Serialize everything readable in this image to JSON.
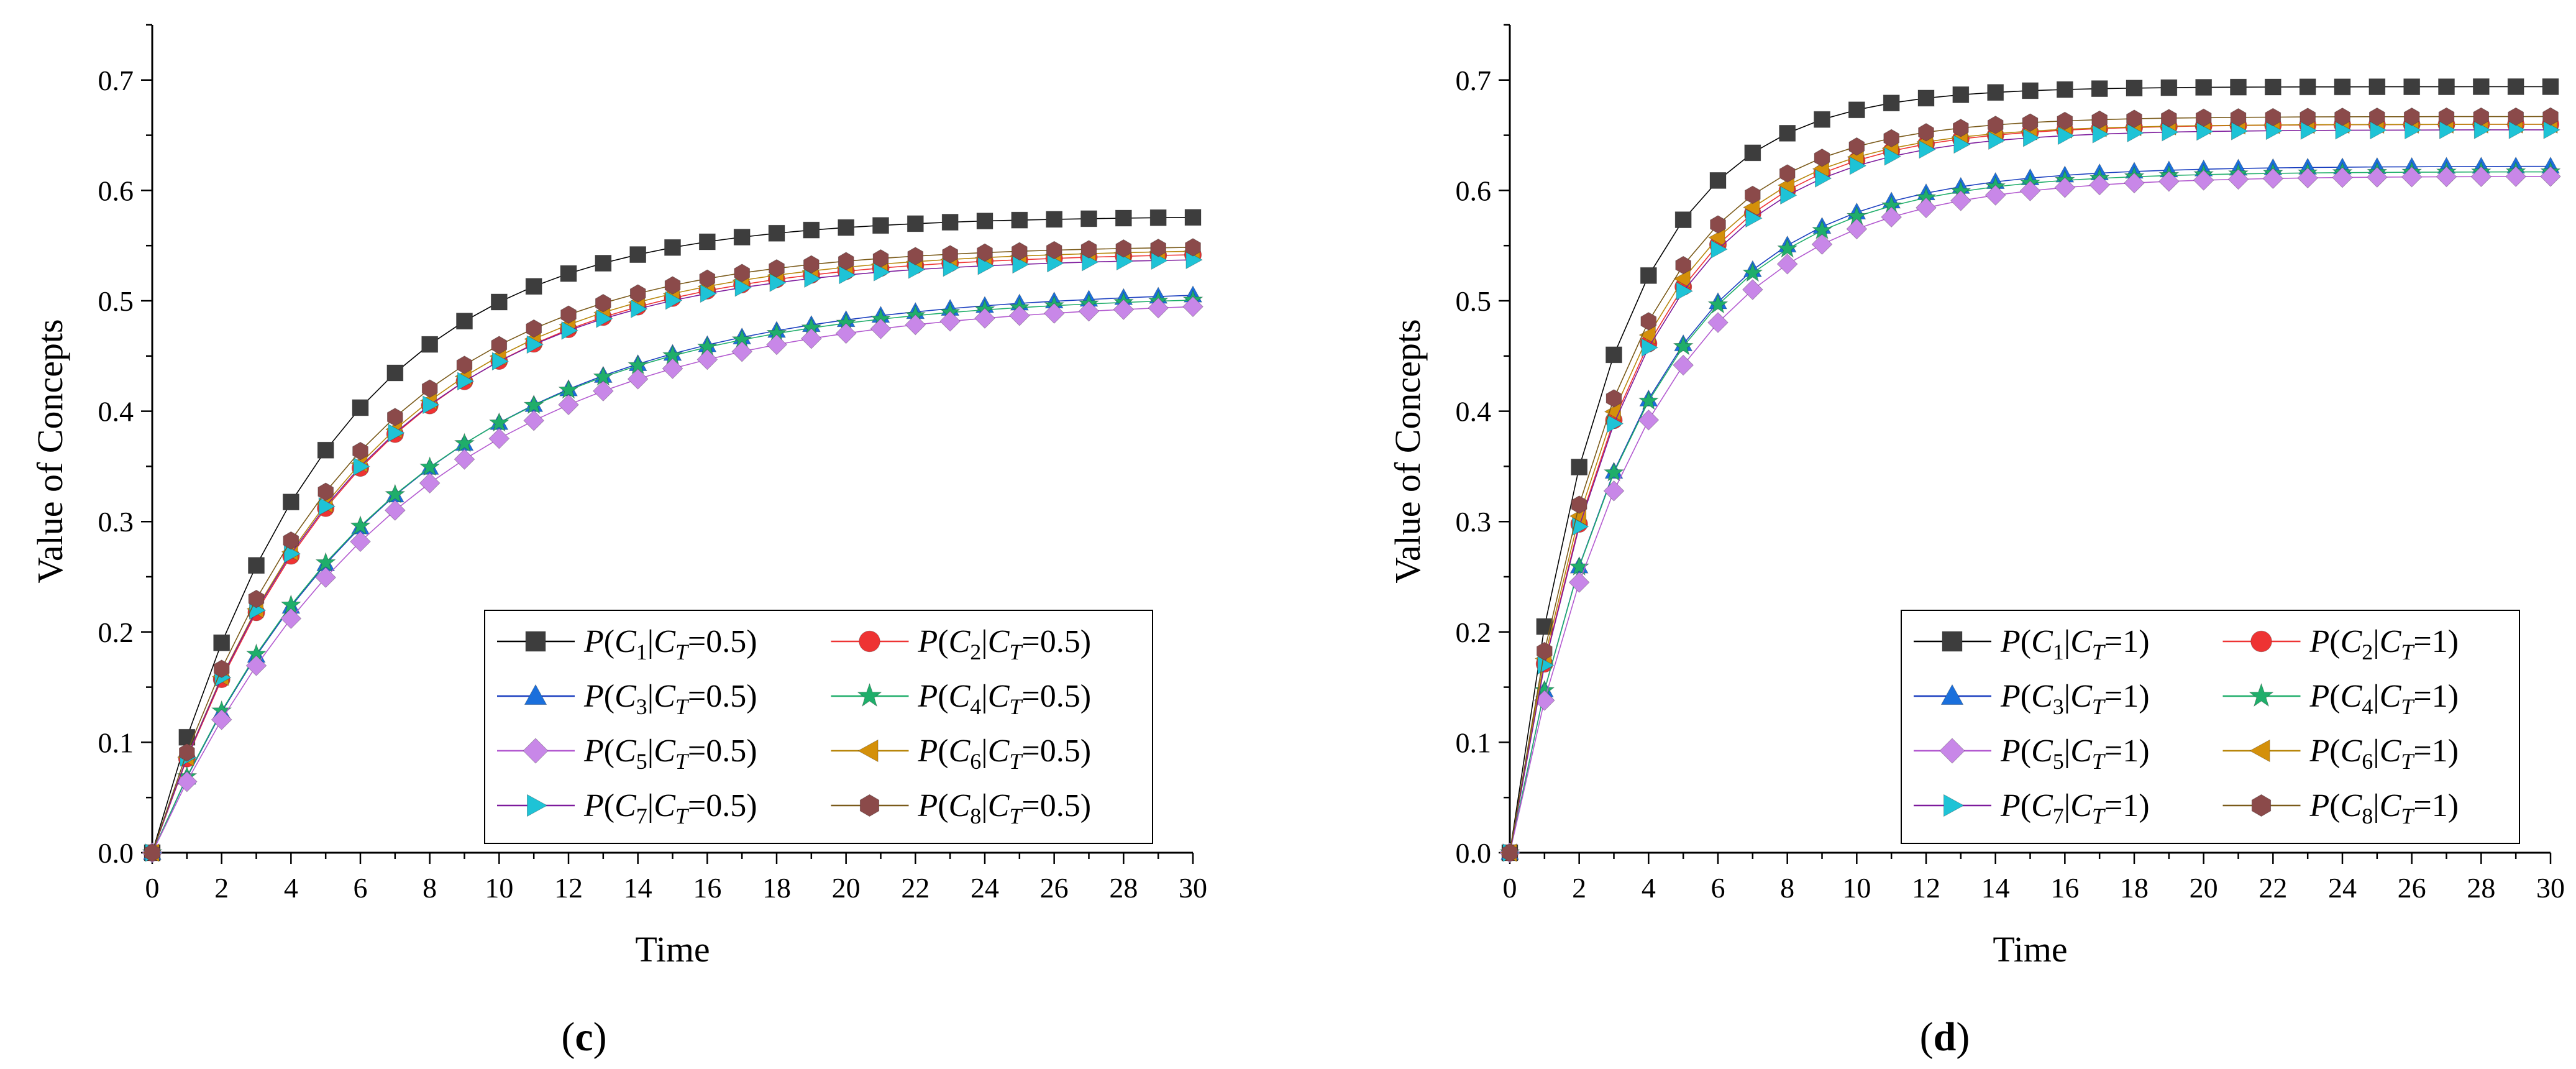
{
  "chart_data": [
    {
      "type": "line",
      "panel_label": "(c)",
      "panel_letter": "c",
      "xlabel": "Time",
      "ylabel": "Value of Concepts",
      "xlim": [
        0,
        30
      ],
      "ylim": [
        0,
        0.75
      ],
      "xticks": [
        0,
        2,
        4,
        6,
        8,
        10,
        12,
        14,
        16,
        18,
        20,
        22,
        24,
        26,
        28,
        30
      ],
      "yticks": [
        0.0,
        0.1,
        0.2,
        0.3,
        0.4,
        0.5,
        0.6,
        0.7
      ],
      "ytick_labels": [
        "0.0",
        "0.1",
        "0.2",
        "0.3",
        "0.4",
        "0.5",
        "0.6",
        "0.7"
      ],
      "legend_ct": "0.5",
      "legend_location": "lower-right",
      "x": [
        0,
        1,
        2,
        3,
        4,
        5,
        6,
        7,
        8,
        9,
        10,
        11,
        12,
        13,
        14,
        15,
        16,
        17,
        18,
        19,
        20,
        21,
        22,
        23,
        24,
        25,
        26,
        27,
        28,
        29,
        30
      ],
      "series": [
        {
          "name": "P(C1|CT=0.5)",
          "idx": "1",
          "marker": "square",
          "color": "#3d3d3d",
          "line": "#000000",
          "final": 0.577,
          "k": 0.2
        },
        {
          "name": "P(C2|CT=0.5)",
          "idx": "2",
          "marker": "circle",
          "color": "#ee3333",
          "line": "#ee3333",
          "final": 0.545,
          "k": 0.17
        },
        {
          "name": "P(C3|CT=0.5)",
          "idx": "3",
          "marker": "triangle-up",
          "color": "#1a6fdc",
          "line": "#1a3fc0",
          "final": 0.512,
          "k": 0.143
        },
        {
          "name": "P(C4|CT=0.5)",
          "idx": "4",
          "marker": "star",
          "color": "#1fae6a",
          "line": "#1fae6a",
          "final": 0.507,
          "k": 0.146
        },
        {
          "name": "P(C5|CT=0.5)",
          "idx": "5",
          "marker": "diamond",
          "color": "#c887e8",
          "line": "#b35ad0",
          "final": 0.503,
          "k": 0.137
        },
        {
          "name": "P(C6|CT=0.5)",
          "idx": "6",
          "marker": "triangle-left",
          "color": "#d4900a",
          "line": "#b8860b",
          "final": 0.548,
          "k": 0.172
        },
        {
          "name": "P(C7|CT=0.5)",
          "idx": "7",
          "marker": "triangle-right",
          "color": "#1ec3d6",
          "line": "#7d1a9c",
          "final": 0.54,
          "k": 0.174
        },
        {
          "name": "P(C8|CT=0.5)",
          "idx": "8",
          "marker": "hexagon",
          "color": "#8b4a4a",
          "line": "#7a5a1a",
          "final": 0.551,
          "k": 0.18
        }
      ]
    },
    {
      "type": "line",
      "panel_label": "(d)",
      "panel_letter": "d",
      "xlabel": "Time",
      "ylabel": "Value of Concepts",
      "xlim": [
        0,
        30
      ],
      "ylim": [
        0,
        0.75
      ],
      "xticks": [
        0,
        2,
        4,
        6,
        8,
        10,
        12,
        14,
        16,
        18,
        20,
        22,
        24,
        26,
        28,
        30
      ],
      "yticks": [
        0.0,
        0.1,
        0.2,
        0.3,
        0.4,
        0.5,
        0.6,
        0.7
      ],
      "ytick_labels": [
        "0.0",
        "0.1",
        "0.2",
        "0.3",
        "0.4",
        "0.5",
        "0.6",
        "0.7"
      ],
      "legend_ct": "1",
      "legend_location": "lower-right",
      "x": [
        0,
        1,
        2,
        3,
        4,
        5,
        6,
        7,
        8,
        9,
        10,
        11,
        12,
        13,
        14,
        15,
        16,
        17,
        18,
        19,
        20,
        21,
        22,
        23,
        24,
        25,
        26,
        27,
        28,
        29,
        30
      ],
      "series": [
        {
          "name": "P(C1|CT=1)",
          "idx": "1",
          "marker": "square",
          "color": "#3d3d3d",
          "line": "#000000",
          "final": 0.694,
          "k": 0.35
        },
        {
          "name": "P(C2|CT=1)",
          "idx": "2",
          "marker": "circle",
          "color": "#ee3333",
          "line": "#ee3333",
          "final": 0.66,
          "k": 0.3
        },
        {
          "name": "P(C3|CT=1)",
          "idx": "3",
          "marker": "triangle-up",
          "color": "#1a6fdc",
          "line": "#1a3fc0",
          "final": 0.622,
          "k": 0.27
        },
        {
          "name": "P(C4|CT=1)",
          "idx": "4",
          "marker": "star",
          "color": "#1fae6a",
          "line": "#1fae6a",
          "final": 0.617,
          "k": 0.272
        },
        {
          "name": "P(C5|CT=1)",
          "idx": "5",
          "marker": "diamond",
          "color": "#c887e8",
          "line": "#b35ad0",
          "final": 0.613,
          "k": 0.255
        },
        {
          "name": "P(C6|CT=1)",
          "idx": "6",
          "marker": "triangle-left",
          "color": "#d4900a",
          "line": "#b8860b",
          "final": 0.66,
          "k": 0.31
        },
        {
          "name": "P(C7|CT=1)",
          "idx": "7",
          "marker": "triangle-right",
          "color": "#1ec3d6",
          "line": "#7d1a9c",
          "final": 0.655,
          "k": 0.3
        },
        {
          "name": "P(C8|CT=1)",
          "idx": "8",
          "marker": "hexagon",
          "color": "#8b4a4a",
          "line": "#7a5a1a",
          "final": 0.667,
          "k": 0.32
        }
      ]
    }
  ]
}
